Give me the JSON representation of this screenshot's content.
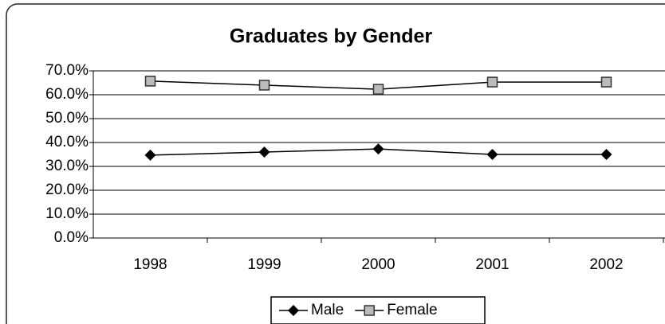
{
  "chart_data": {
    "type": "line",
    "title": "Graduates by Gender",
    "categories": [
      "1998",
      "1999",
      "2000",
      "2001",
      "2002"
    ],
    "series": [
      {
        "name": "Male",
        "color": "#000000",
        "marker": "diamond",
        "values": [
          34.7,
          36.0,
          37.3,
          35.0,
          35.0
        ]
      },
      {
        "name": "Female",
        "color": "#000000",
        "marker": "square",
        "values": [
          65.7,
          64.0,
          62.3,
          65.3,
          65.3
        ]
      }
    ],
    "ylim": [
      0,
      70
    ],
    "yticks": [
      {
        "value": 0,
        "label": "0.0%"
      },
      {
        "value": 10,
        "label": "10.0%"
      },
      {
        "value": 20,
        "label": "20.0%"
      },
      {
        "value": 30,
        "label": "30.0%"
      },
      {
        "value": 40,
        "label": "40.0%"
      },
      {
        "value": 50,
        "label": "50.0%"
      },
      {
        "value": 60,
        "label": "60.0%"
      },
      {
        "value": 70,
        "label": "70.0%"
      }
    ],
    "grid": true,
    "legend": "bottom"
  }
}
